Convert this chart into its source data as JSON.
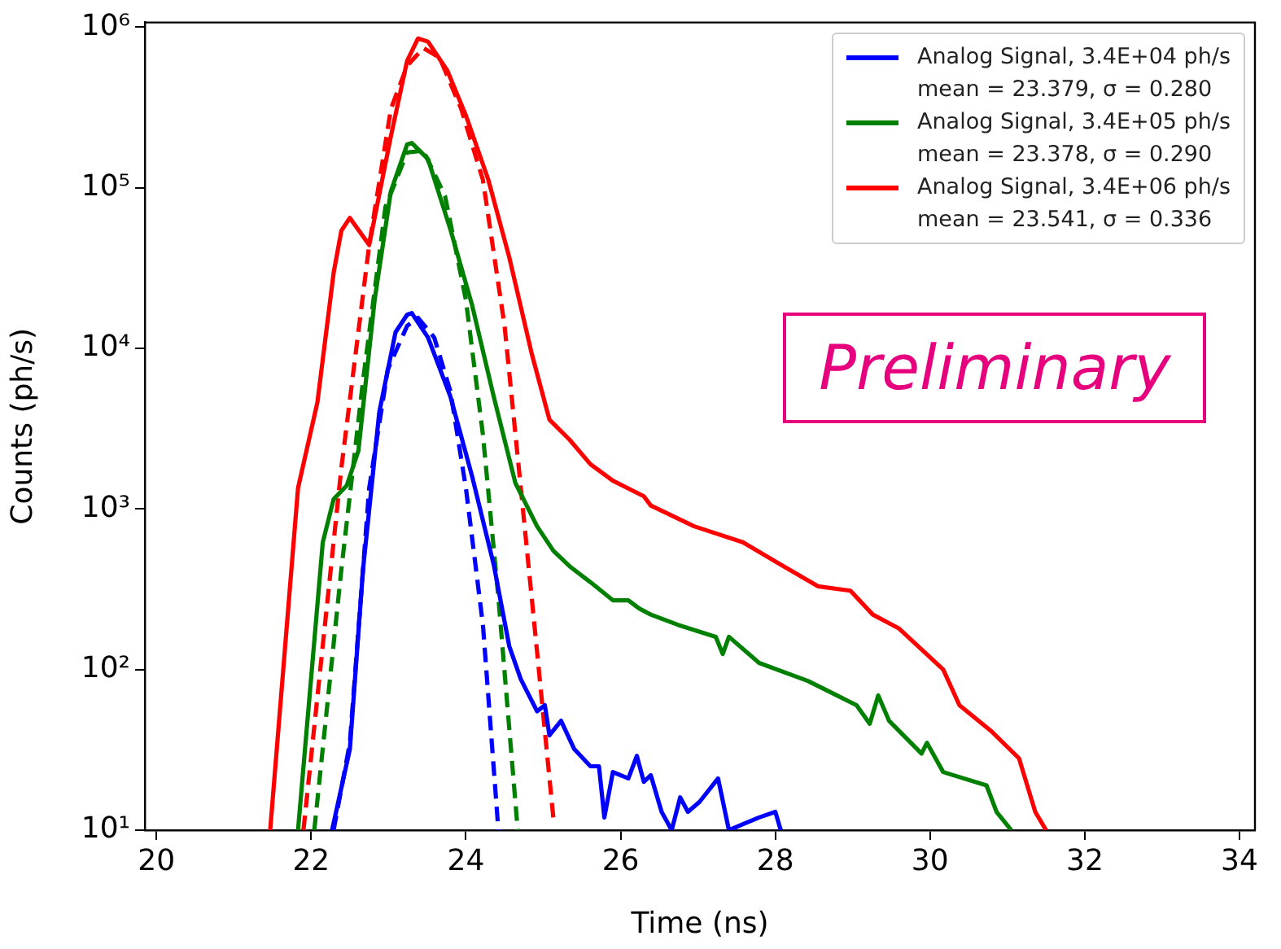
{
  "chart_data": {
    "type": "line",
    "xlabel": "Time (ns)",
    "ylabel": "Counts (ph/s)",
    "log": "y",
    "legend": "top right",
    "grid": false,
    "xlim": [
      19.85,
      34.2
    ],
    "xticks": [
      20,
      22,
      24,
      26,
      28,
      30,
      32,
      34
    ],
    "ylim": [
      10,
      1070000
    ],
    "yticks": [
      {
        "value": 10,
        "label": "10¹"
      },
      {
        "value": 100,
        "label": "10²"
      },
      {
        "value": 1000,
        "label": "10³"
      },
      {
        "value": 10000,
        "label": "10⁴"
      },
      {
        "value": 100000,
        "label": "10⁵"
      },
      {
        "value": 1000000,
        "label": "10⁶"
      }
    ],
    "annotations": [
      "Preliminary"
    ],
    "series": [
      {
        "name": "Analog Signal, 3.4E+04 ph/s\nmean = 23.379, σ = 0.280",
        "color": "#0000ff",
        "line_style": "solid",
        "x": [
          22.27,
          22.5,
          22.67,
          22.88,
          23.09,
          23.24,
          23.3,
          23.51,
          23.8,
          24.08,
          24.36,
          24.56,
          24.71,
          24.92,
          25.02,
          25.08,
          25.23,
          25.4,
          25.61,
          25.72,
          25.79,
          25.9,
          26.1,
          26.21,
          26.3,
          26.39,
          26.53,
          26.66,
          26.77,
          26.87,
          27.02,
          27.26,
          27.4,
          27.6,
          27.79,
          28.0,
          28.07
        ],
        "values": [
          10,
          32,
          420,
          4000,
          12600,
          16200,
          16600,
          11700,
          5000,
          1600,
          450,
          140,
          87,
          55,
          60,
          39,
          48,
          32,
          25,
          25,
          12,
          23,
          21,
          29,
          20,
          22,
          13,
          10,
          16,
          13,
          15,
          21,
          10,
          11,
          12,
          13,
          10
        ]
      },
      {
        "name": "Analog Signal, 3.4E+05 ph/s\nmean = 23.378, σ = 0.290",
        "color": "#008000",
        "line_style": "solid",
        "x": [
          21.83,
          22.15,
          22.29,
          22.46,
          22.61,
          22.82,
          23.03,
          23.24,
          23.3,
          23.51,
          23.8,
          24.08,
          24.36,
          24.64,
          24.92,
          25.13,
          25.34,
          25.61,
          25.9,
          26.1,
          26.24,
          26.39,
          26.74,
          27.23,
          27.32,
          27.4,
          27.79,
          28.42,
          29.05,
          29.22,
          29.33,
          29.47,
          29.89,
          29.96,
          30.17,
          30.73,
          30.86,
          31.05
        ],
        "values": [
          10,
          620,
          1150,
          1400,
          2300,
          20000,
          95000,
          186000,
          190000,
          151000,
          55000,
          18600,
          5000,
          1450,
          780,
          550,
          440,
          350,
          270,
          270,
          240,
          220,
          190,
          160,
          125,
          160,
          110,
          85,
          60,
          46,
          69,
          48,
          30,
          35,
          23,
          19,
          13,
          10
        ]
      },
      {
        "name": "Analog Signal, 3.4E+06 ph/s\nmean = 23.541, σ = 0.336",
        "color": "#ff0000",
        "line_style": "solid",
        "x": [
          21.47,
          21.83,
          22.08,
          22.29,
          22.39,
          22.5,
          22.75,
          23.03,
          23.24,
          23.38,
          23.51,
          23.76,
          24.0,
          24.29,
          24.56,
          24.85,
          25.08,
          25.34,
          25.61,
          25.9,
          26.3,
          26.39,
          26.95,
          27.58,
          28.07,
          28.55,
          28.97,
          29.26,
          29.6,
          30.17,
          30.38,
          30.8,
          31.15,
          31.36,
          31.5
        ],
        "values": [
          10,
          1350,
          4600,
          29500,
          54000,
          65000,
          44000,
          209000,
          617000,
          850000,
          813000,
          537000,
          282000,
          112000,
          37000,
          9300,
          3600,
          2700,
          1900,
          1500,
          1200,
          1050,
          780,
          620,
          450,
          330,
          310,
          220,
          180,
          100,
          60,
          41,
          28,
          13,
          10
        ]
      },
      {
        "color": "#0000ff",
        "line_style": "dashed",
        "x": [
          22.29,
          22.5,
          22.75,
          22.99,
          23.24,
          23.38,
          23.59,
          23.8,
          24.0,
          24.22,
          24.42
        ],
        "values": [
          10,
          35,
          1350,
          7400,
          13800,
          15500,
          11700,
          5400,
          1350,
          190,
          10
        ]
      },
      {
        "color": "#008000",
        "line_style": "dashed",
        "x": [
          22.04,
          22.39,
          22.67,
          22.96,
          23.24,
          23.45,
          23.73,
          24.0,
          24.22,
          24.42,
          24.67
        ],
        "values": [
          10,
          420,
          6300,
          76000,
          166000,
          170000,
          89000,
          20000,
          2900,
          280,
          10
        ]
      },
      {
        "color": "#ff0000",
        "line_style": "dashed",
        "x": [
          21.9,
          22.39,
          22.75,
          23.03,
          23.24,
          23.45,
          23.66,
          23.94,
          24.22,
          24.5,
          24.71,
          24.92,
          25.13
        ],
        "values": [
          10,
          1800,
          44000,
          309000,
          575000,
          741000,
          646000,
          309000,
          112000,
          13800,
          1350,
          129,
          12
        ]
      }
    ]
  }
}
